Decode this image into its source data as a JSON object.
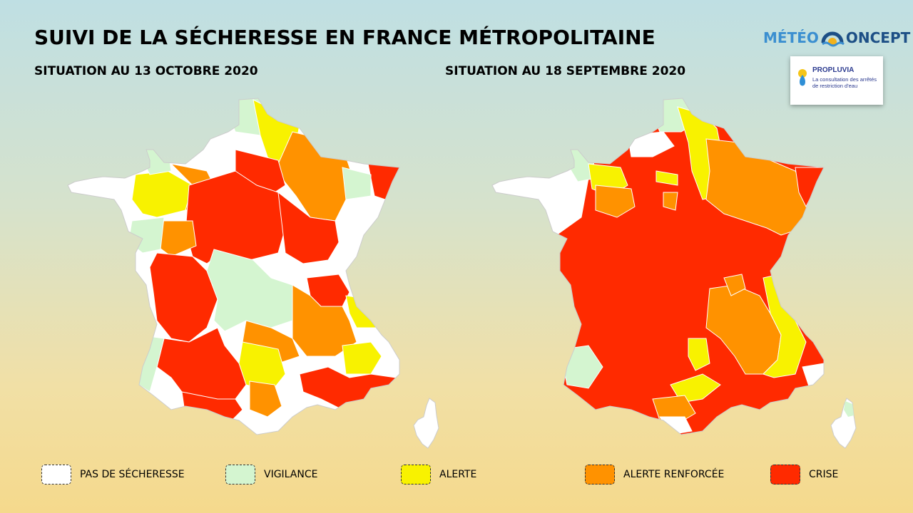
{
  "title": "SUIVI DE LA SÉCHERESSE EN FRANCE MÉTROPOLITAINE",
  "maps": [
    {
      "subtitle": "SITUATION AU 13 OCTOBRE 2020"
    },
    {
      "subtitle": "SITUATION AU 18 SEPTEMBRE 2020"
    }
  ],
  "brand": {
    "part1": "MÉTÉO",
    "part2": "ONCEPT"
  },
  "badge": {
    "name": "PROPLUVIA",
    "description": "La consultation des arrêtés de restriction d'eau"
  },
  "legend": [
    {
      "label": "PAS DE SÉCHERESSE",
      "color": "#ffffff"
    },
    {
      "label": "VIGILANCE",
      "color": "#d4f5d0"
    },
    {
      "label": "ALERTE",
      "color": "#f8f200"
    },
    {
      "label": "ALERTE RENFORCÉE",
      "color": "#ff9200"
    },
    {
      "label": "CRISE",
      "color": "#ff2a00"
    }
  ],
  "colors": {
    "none": "#ffffff",
    "vigilance": "#d4f5d0",
    "alerte": "#f8f200",
    "renforcee": "#ff9200",
    "crise": "#ff2a00"
  }
}
